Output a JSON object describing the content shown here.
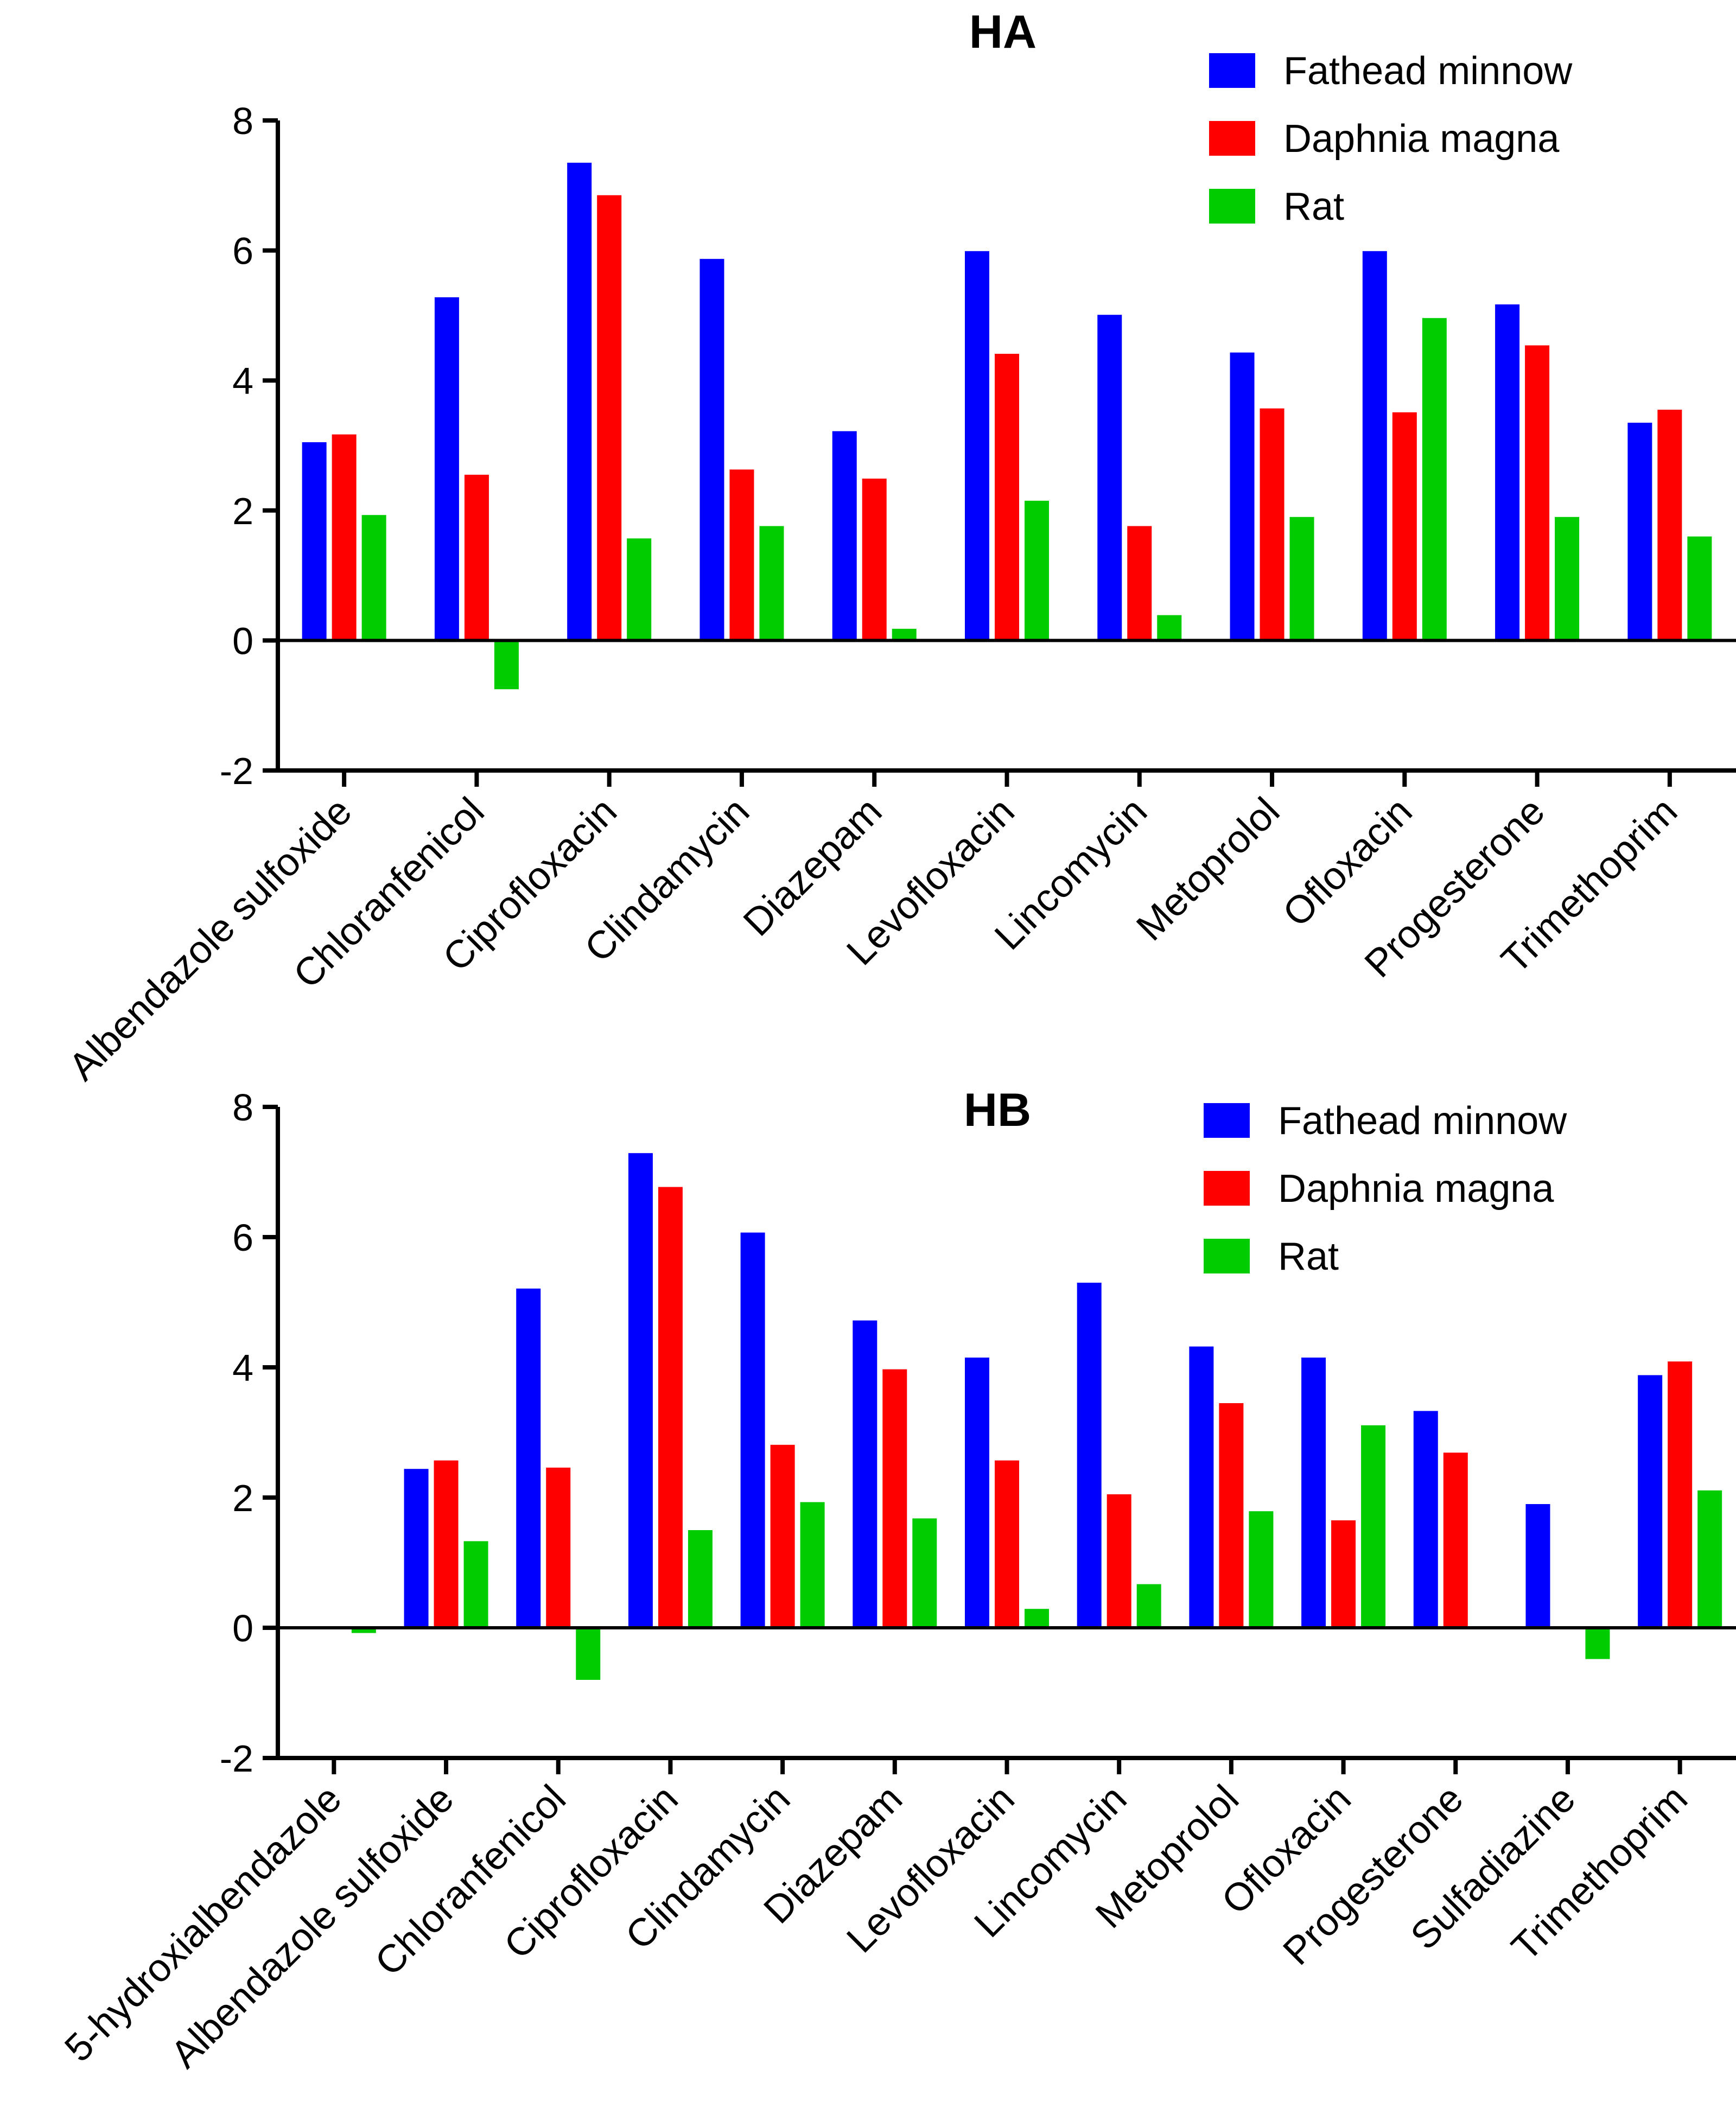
{
  "chart_data": [
    {
      "type": "bar",
      "title": "HA",
      "xlabel": "",
      "ylabel": "",
      "ylim": [
        -2,
        8
      ],
      "yticks": [
        -2,
        0,
        2,
        4,
        6,
        8
      ],
      "legend_position": "top-right",
      "categories": [
        "Albendazole sulfoxide",
        "Chloranfenicol",
        "Ciprofloxacin",
        "Clindamycin",
        "Diazepam",
        "Levofloxacin",
        "Lincomycin",
        "Metoprolol",
        "Ofloxacin",
        "Progesterone",
        "Trimethoprim"
      ],
      "series": [
        {
          "name": "Fathead minnow",
          "color": "#0000ff",
          "values": [
            3.05,
            5.28,
            7.35,
            5.87,
            3.22,
            5.99,
            5.01,
            4.43,
            5.99,
            5.17,
            3.35
          ]
        },
        {
          "name": "Daphnia magna",
          "color": "#ff0000",
          "values": [
            3.17,
            2.55,
            6.85,
            2.63,
            2.49,
            4.41,
            1.76,
            3.57,
            3.51,
            4.54,
            3.55
          ]
        },
        {
          "name": "Rat",
          "color": "#00cc00",
          "values": [
            1.93,
            -0.75,
            1.57,
            1.76,
            0.18,
            2.15,
            0.39,
            1.9,
            4.96,
            1.9,
            1.6
          ]
        }
      ]
    },
    {
      "type": "bar",
      "title": "HB",
      "xlabel": "",
      "ylabel": "",
      "ylim": [
        -2,
        8
      ],
      "yticks": [
        -2,
        0,
        2,
        4,
        6,
        8
      ],
      "legend_position": "top-right",
      "categories": [
        "5-hydroxialbendazole",
        "Albendazole sulfoxide",
        "Chloranfenicol",
        "Ciprofloxacin",
        "Clindamycin",
        "Diazepam",
        "Levofloxacin",
        "Lincomycin",
        "Metoprolol",
        "Ofloxacin",
        "Progesterone",
        "Sulfadiazine",
        "Trimethoprim"
      ],
      "series": [
        {
          "name": "Fathead minnow",
          "color": "#0000ff",
          "values": [
            null,
            2.44,
            5.21,
            7.29,
            6.07,
            4.72,
            4.15,
            5.3,
            4.32,
            4.15,
            3.33,
            1.9,
            3.88
          ]
        },
        {
          "name": "Daphnia magna",
          "color": "#ff0000",
          "values": [
            null,
            2.57,
            2.46,
            6.77,
            2.81,
            3.97,
            2.57,
            2.05,
            3.45,
            1.65,
            2.69,
            null,
            4.09
          ]
        },
        {
          "name": "Rat",
          "color": "#00cc00",
          "values": [
            -0.08,
            1.33,
            -0.8,
            1.5,
            1.93,
            1.68,
            0.29,
            0.67,
            1.79,
            3.11,
            null,
            -0.48,
            2.11
          ]
        }
      ]
    }
  ]
}
